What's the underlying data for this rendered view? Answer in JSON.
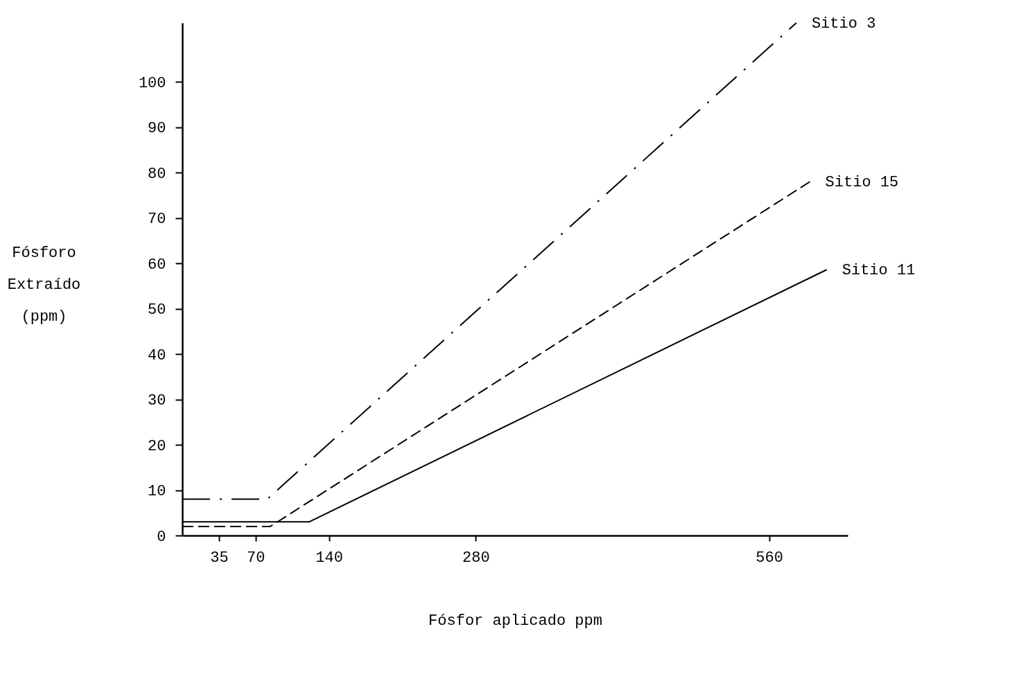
{
  "chart_data": {
    "type": "line",
    "xlabel": "Fósfor aplicado ppm",
    "ylabel": "Fósforo\nExtraído\n(ppm)",
    "xlim": [
      0,
      635
    ],
    "xticks": [
      35,
      70,
      140,
      280,
      560
    ],
    "ylim": [
      0,
      113
    ],
    "yticks": [
      0,
      10,
      20,
      30,
      40,
      50,
      60,
      70,
      80,
      90,
      100
    ],
    "grid": false,
    "legend": false,
    "marker": "none",
    "series": [
      {
        "name": "Sitio 3",
        "color": "#000000",
        "line_style": "dashdot",
        "x": [
          0,
          81,
          586
        ],
        "values": [
          8,
          8,
          113
        ]
      },
      {
        "name": "Sitio 15",
        "color": "#000000",
        "line_style": "dashed",
        "x": [
          0,
          84,
          599
        ],
        "values": [
          2,
          2,
          78
        ]
      },
      {
        "name": "Sitio 11",
        "color": "#000000",
        "line_style": "solid",
        "x": [
          0,
          121,
          615
        ],
        "values": [
          3,
          3,
          58.6
        ]
      }
    ]
  }
}
